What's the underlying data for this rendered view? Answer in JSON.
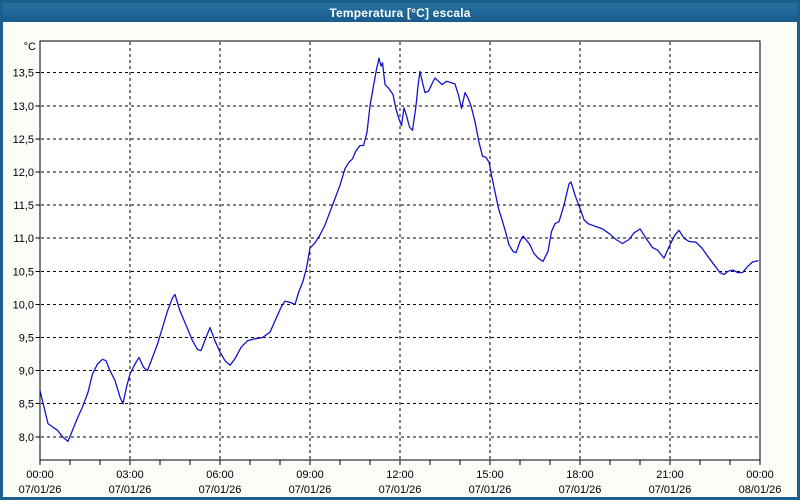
{
  "window": {
    "title": "Temperatura [°C] escala",
    "colors": {
      "titlebar": "#1f6697",
      "border": "#1d5f8e",
      "window_bg": "#fbfdf8",
      "plot_bg": "#ffffff",
      "line": "#1414c8",
      "grid": "#000000",
      "title_text": "#ffffff"
    }
  },
  "chart_data": {
    "type": "line",
    "title": "Temperatura [°C] escala",
    "unit_label": "°C",
    "legend": "none",
    "grid": "dashed",
    "y_axis": {
      "tick_labels": [
        "8,0",
        "8,5",
        "9,0",
        "9,5",
        "10,0",
        "10,5",
        "11,0",
        "11,5",
        "12,0",
        "12,5",
        "13,0",
        "13,5"
      ],
      "tick_values": [
        8.0,
        8.5,
        9.0,
        9.5,
        10.0,
        10.5,
        11.0,
        11.5,
        12.0,
        12.5,
        13.0,
        13.5
      ],
      "range": [
        7.65,
        13.98
      ]
    },
    "x_axis": {
      "range_hours": [
        0,
        24
      ],
      "minor_tick_every_hours": 1,
      "label_hours": [
        0,
        3,
        6,
        9,
        12,
        15,
        18,
        21,
        24
      ],
      "labels": [
        {
          "time": "00:00",
          "date": "07/01/26"
        },
        {
          "time": "03:00",
          "date": "07/01/26"
        },
        {
          "time": "06:00",
          "date": "07/01/26"
        },
        {
          "time": "09:00",
          "date": "07/01/26"
        },
        {
          "time": "12:00",
          "date": "07/01/26"
        },
        {
          "time": "15:00",
          "date": "07/01/26"
        },
        {
          "time": "18:00",
          "date": "07/01/26"
        },
        {
          "time": "21:00",
          "date": "07/01/26"
        },
        {
          "time": "00:00",
          "date": "08/01/26"
        }
      ]
    },
    "series": [
      {
        "name": "Temperatura",
        "color": "#1414c8",
        "points": [
          [
            "00:00",
            8.7
          ],
          [
            "00:08",
            8.45
          ],
          [
            "00:16",
            8.2
          ],
          [
            "00:25",
            8.15
          ],
          [
            "00:35",
            8.1
          ],
          [
            "00:45",
            8.0
          ],
          [
            "00:56",
            7.93
          ],
          [
            "01:05",
            8.1
          ],
          [
            "01:16",
            8.3
          ],
          [
            "01:25",
            8.45
          ],
          [
            "01:36",
            8.67
          ],
          [
            "01:45",
            8.95
          ],
          [
            "01:55",
            9.1
          ],
          [
            "02:05",
            9.17
          ],
          [
            "02:12",
            9.15
          ],
          [
            "02:20",
            9.0
          ],
          [
            "02:30",
            8.85
          ],
          [
            "02:40",
            8.6
          ],
          [
            "02:46",
            8.5
          ],
          [
            "02:53",
            8.75
          ],
          [
            "03:00",
            8.95
          ],
          [
            "03:10",
            9.1
          ],
          [
            "03:18",
            9.2
          ],
          [
            "03:27",
            9.05
          ],
          [
            "03:35",
            9.0
          ],
          [
            "03:45",
            9.2
          ],
          [
            "03:55",
            9.4
          ],
          [
            "04:05",
            9.65
          ],
          [
            "04:15",
            9.9
          ],
          [
            "04:25",
            10.1
          ],
          [
            "04:30",
            10.15
          ],
          [
            "04:40",
            9.9
          ],
          [
            "04:53",
            9.67
          ],
          [
            "05:05",
            9.45
          ],
          [
            "05:15",
            9.32
          ],
          [
            "05:22",
            9.3
          ],
          [
            "05:32",
            9.5
          ],
          [
            "05:40",
            9.65
          ],
          [
            "05:50",
            9.45
          ],
          [
            "06:00",
            9.28
          ],
          [
            "06:10",
            9.15
          ],
          [
            "06:20",
            9.08
          ],
          [
            "06:30",
            9.18
          ],
          [
            "06:42",
            9.35
          ],
          [
            "06:55",
            9.45
          ],
          [
            "07:10",
            9.48
          ],
          [
            "07:25",
            9.5
          ],
          [
            "07:40",
            9.58
          ],
          [
            "07:50",
            9.75
          ],
          [
            "08:03",
            9.97
          ],
          [
            "08:10",
            10.05
          ],
          [
            "08:20",
            10.03
          ],
          [
            "08:30",
            10.0
          ],
          [
            "08:38",
            10.2
          ],
          [
            "08:46",
            10.35
          ],
          [
            "08:53",
            10.55
          ],
          [
            "09:00",
            10.85
          ],
          [
            "09:10",
            10.93
          ],
          [
            "09:20",
            11.05
          ],
          [
            "09:30",
            11.2
          ],
          [
            "09:40",
            11.4
          ],
          [
            "09:50",
            11.6
          ],
          [
            "10:00",
            11.8
          ],
          [
            "10:10",
            12.05
          ],
          [
            "10:18",
            12.15
          ],
          [
            "10:25",
            12.2
          ],
          [
            "10:32",
            12.32
          ],
          [
            "10:40",
            12.4
          ],
          [
            "10:47",
            12.4
          ],
          [
            "10:54",
            12.6
          ],
          [
            "11:00",
            13.0
          ],
          [
            "11:07",
            13.3
          ],
          [
            "11:13",
            13.55
          ],
          [
            "11:18",
            13.72
          ],
          [
            "11:22",
            13.6
          ],
          [
            "11:25",
            13.65
          ],
          [
            "11:30",
            13.32
          ],
          [
            "11:38",
            13.26
          ],
          [
            "11:46",
            13.17
          ],
          [
            "11:52",
            12.95
          ],
          [
            "11:58",
            12.8
          ],
          [
            "12:03",
            12.7
          ],
          [
            "12:08",
            12.97
          ],
          [
            "12:13",
            12.85
          ],
          [
            "12:19",
            12.68
          ],
          [
            "12:25",
            12.63
          ],
          [
            "12:32",
            13.0
          ],
          [
            "12:36",
            13.3
          ],
          [
            "12:40",
            13.52
          ],
          [
            "12:45",
            13.35
          ],
          [
            "12:50",
            13.2
          ],
          [
            "12:57",
            13.22
          ],
          [
            "13:05",
            13.35
          ],
          [
            "13:10",
            13.42
          ],
          [
            "13:17",
            13.37
          ],
          [
            "13:24",
            13.32
          ],
          [
            "13:33",
            13.37
          ],
          [
            "13:42",
            13.35
          ],
          [
            "13:50",
            13.33
          ],
          [
            "13:57",
            13.16
          ],
          [
            "14:03",
            12.96
          ],
          [
            "14:10",
            13.2
          ],
          [
            "14:16",
            13.12
          ],
          [
            "14:22",
            13.0
          ],
          [
            "14:30",
            12.76
          ],
          [
            "14:38",
            12.45
          ],
          [
            "14:45",
            12.24
          ],
          [
            "14:52",
            12.22
          ],
          [
            "14:58",
            12.15
          ],
          [
            "15:03",
            11.95
          ],
          [
            "15:10",
            11.7
          ],
          [
            "15:17",
            11.45
          ],
          [
            "15:24",
            11.28
          ],
          [
            "15:31",
            11.1
          ],
          [
            "15:38",
            10.9
          ],
          [
            "15:46",
            10.8
          ],
          [
            "15:52",
            10.78
          ],
          [
            "16:00",
            10.95
          ],
          [
            "16:06",
            11.03
          ],
          [
            "16:13",
            10.97
          ],
          [
            "16:20",
            10.9
          ],
          [
            "16:27",
            10.78
          ],
          [
            "16:36",
            10.7
          ],
          [
            "16:46",
            10.65
          ],
          [
            "16:56",
            10.8
          ],
          [
            "17:03",
            11.1
          ],
          [
            "17:10",
            11.22
          ],
          [
            "17:18",
            11.25
          ],
          [
            "17:28",
            11.5
          ],
          [
            "17:38",
            11.82
          ],
          [
            "17:42",
            11.85
          ],
          [
            "17:50",
            11.65
          ],
          [
            "18:00",
            11.45
          ],
          [
            "18:08",
            11.28
          ],
          [
            "18:16",
            11.22
          ],
          [
            "18:30",
            11.18
          ],
          [
            "18:45",
            11.14
          ],
          [
            "19:00",
            11.06
          ],
          [
            "19:12",
            10.98
          ],
          [
            "19:25",
            10.92
          ],
          [
            "19:38",
            10.98
          ],
          [
            "19:48",
            11.08
          ],
          [
            "20:00",
            11.14
          ],
          [
            "20:12",
            11.0
          ],
          [
            "20:25",
            10.86
          ],
          [
            "20:35",
            10.82
          ],
          [
            "20:48",
            10.7
          ],
          [
            "21:00",
            10.9
          ],
          [
            "21:10",
            11.05
          ],
          [
            "21:18",
            11.12
          ],
          [
            "21:28",
            11.0
          ],
          [
            "21:38",
            10.95
          ],
          [
            "21:52",
            10.94
          ],
          [
            "22:04",
            10.85
          ],
          [
            "22:16",
            10.72
          ],
          [
            "22:28",
            10.6
          ],
          [
            "22:40",
            10.48
          ],
          [
            "22:48",
            10.45
          ],
          [
            "22:56",
            10.5
          ],
          [
            "23:06",
            10.52
          ],
          [
            "23:15",
            10.48
          ],
          [
            "23:25",
            10.48
          ],
          [
            "23:35",
            10.57
          ],
          [
            "23:45",
            10.64
          ],
          [
            "23:56",
            10.66
          ]
        ]
      }
    ]
  }
}
